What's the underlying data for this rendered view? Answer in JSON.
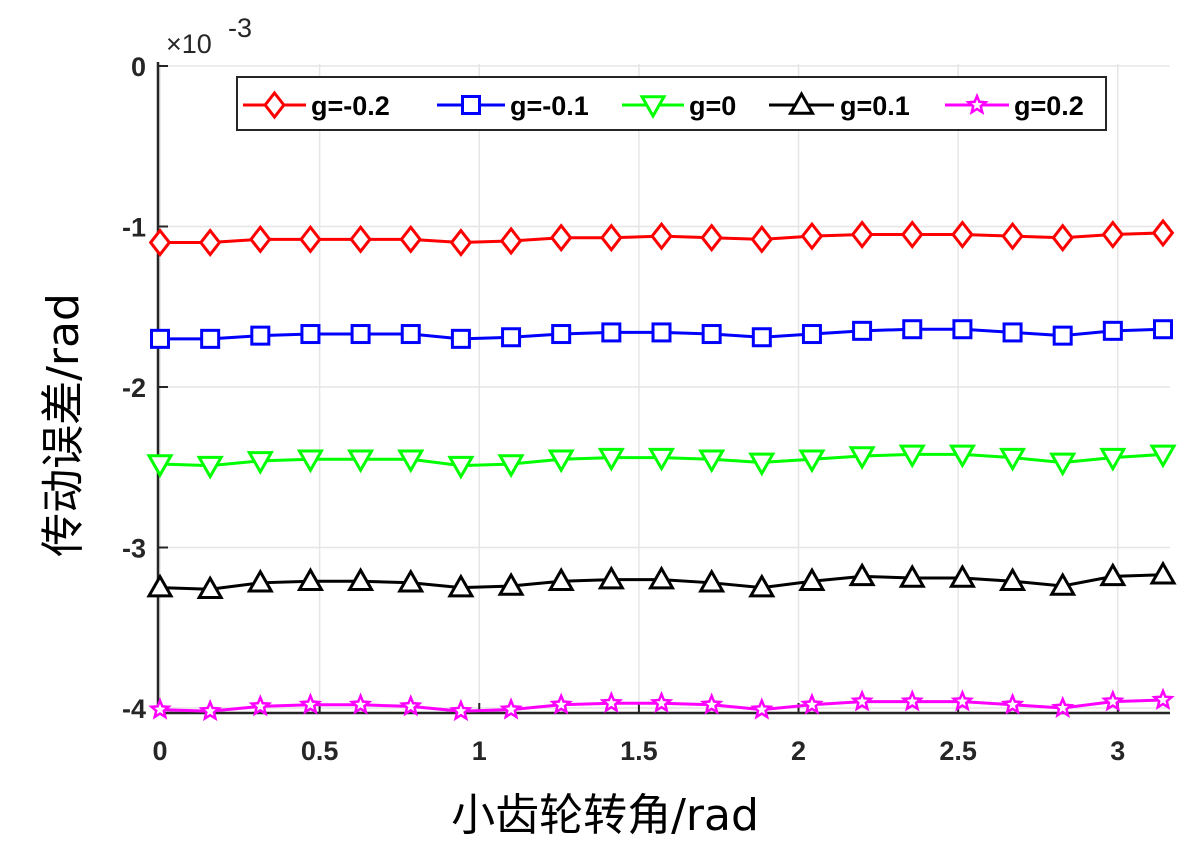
{
  "chart_data": {
    "type": "line",
    "xlabel": "小齿轮转角/rad",
    "ylabel": "传动误差/rad",
    "y_exponent_label": {
      "base": "×10",
      "exponent": "-3"
    },
    "xlim": [
      0,
      3.1416
    ],
    "ylim": [
      -4.0,
      0
    ],
    "xticks": [
      0,
      0.5,
      1,
      1.5,
      2,
      2.5,
      3
    ],
    "xtick_labels": [
      "0",
      "0.5",
      "1",
      "1.5",
      "2",
      "2.5",
      "3"
    ],
    "yticks": [
      0,
      -1,
      -2,
      -3,
      -4
    ],
    "ytick_labels": [
      "0",
      "-1",
      "-2",
      "-3",
      "-4"
    ],
    "grid": true,
    "legend": {
      "placement": "top",
      "orientation": "horizontal"
    },
    "x": [
      0,
      0.1571,
      0.3142,
      0.4712,
      0.6283,
      0.7854,
      0.9425,
      1.0996,
      1.2566,
      1.4137,
      1.5708,
      1.7279,
      1.885,
      2.042,
      2.1991,
      2.3562,
      2.5133,
      2.6704,
      2.8274,
      2.9845,
      3.1416
    ],
    "series": [
      {
        "name": "g=-0.2",
        "color": "#ff0000",
        "marker": "diamond",
        "values": [
          -1.1,
          -1.1,
          -1.08,
          -1.08,
          -1.08,
          -1.08,
          -1.1,
          -1.09,
          -1.07,
          -1.07,
          -1.06,
          -1.07,
          -1.08,
          -1.06,
          -1.05,
          -1.05,
          -1.05,
          -1.06,
          -1.07,
          -1.05,
          -1.04
        ]
      },
      {
        "name": "g=-0.1",
        "color": "#0000ff",
        "marker": "square",
        "values": [
          -1.7,
          -1.7,
          -1.68,
          -1.67,
          -1.67,
          -1.67,
          -1.7,
          -1.69,
          -1.67,
          -1.66,
          -1.66,
          -1.67,
          -1.69,
          -1.67,
          -1.65,
          -1.64,
          -1.64,
          -1.66,
          -1.68,
          -1.65,
          -1.64
        ]
      },
      {
        "name": "g=0",
        "color": "#00ff00",
        "marker": "triangle-down",
        "values": [
          -2.48,
          -2.49,
          -2.46,
          -2.45,
          -2.45,
          -2.45,
          -2.49,
          -2.48,
          -2.45,
          -2.44,
          -2.44,
          -2.45,
          -2.47,
          -2.45,
          -2.43,
          -2.42,
          -2.42,
          -2.44,
          -2.47,
          -2.44,
          -2.42
        ]
      },
      {
        "name": "g=0.1",
        "color": "#000000",
        "marker": "triangle-up",
        "values": [
          -3.25,
          -3.26,
          -3.22,
          -3.21,
          -3.21,
          -3.22,
          -3.25,
          -3.24,
          -3.21,
          -3.2,
          -3.2,
          -3.22,
          -3.25,
          -3.21,
          -3.18,
          -3.19,
          -3.19,
          -3.21,
          -3.24,
          -3.18,
          -3.17
        ]
      },
      {
        "name": "g=0.2",
        "color": "#ff00ff",
        "marker": "star",
        "values": [
          -4.01,
          -4.02,
          -3.99,
          -3.98,
          -3.98,
          -3.99,
          -4.02,
          -4.01,
          -3.98,
          -3.97,
          -3.97,
          -3.98,
          -4.01,
          -3.98,
          -3.96,
          -3.96,
          -3.96,
          -3.98,
          -4.0,
          -3.96,
          -3.95
        ]
      }
    ]
  }
}
